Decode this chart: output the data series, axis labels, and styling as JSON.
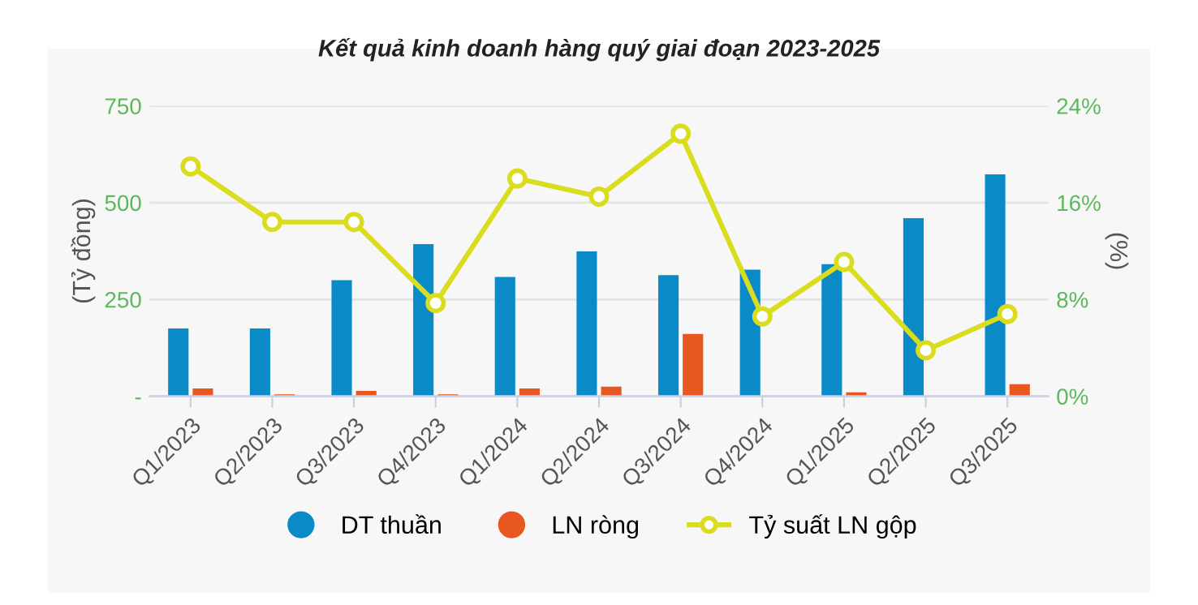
{
  "chart_data": {
    "type": "bar",
    "title": "Kết quả kinh doanh hàng quý giai đoạn 2023-2025",
    "categories": [
      "Q1/2023",
      "Q2/2023",
      "Q3/2023",
      "Q4/2023",
      "Q1/2024",
      "Q2/2024",
      "Q3/2024",
      "Q4/2024",
      "Q1/2025",
      "Q2/2025",
      "Q3/2025"
    ],
    "series": [
      {
        "name": "DT thuần",
        "color": "#0a8bc8",
        "values": [
          175,
          175,
          300,
          393,
          308,
          374,
          313,
          327,
          341,
          460,
          573
        ]
      },
      {
        "name": "LN ròng",
        "color": "#e8571f",
        "values": [
          20,
          5,
          14,
          5,
          20,
          25,
          161,
          0,
          10,
          0,
          31
        ]
      },
      {
        "name": "Tỷ suất LN gộp",
        "type": "line",
        "axis": "y2",
        "color": "#d9dd1e",
        "marker": "circle",
        "values": [
          19.0,
          14.4,
          14.4,
          7.7,
          18.0,
          16.5,
          21.7,
          6.6,
          11.1,
          3.8,
          6.8
        ]
      }
    ],
    "ylabel": "(Tỷ đồng)",
    "y2label": "(%)",
    "ylim": [
      0,
      750
    ],
    "yticks": [
      {
        "value": 0,
        "label": "-"
      },
      250,
      500,
      750
    ],
    "y2lim": [
      0,
      24
    ],
    "y2ticks": [
      {
        "value": 0,
        "label": "0%"
      },
      {
        "value": 8,
        "label": "8%"
      },
      {
        "value": 16,
        "label": "16%"
      },
      {
        "value": 24,
        "label": "24%"
      }
    ],
    "grid": "y",
    "legend": "bottom"
  }
}
